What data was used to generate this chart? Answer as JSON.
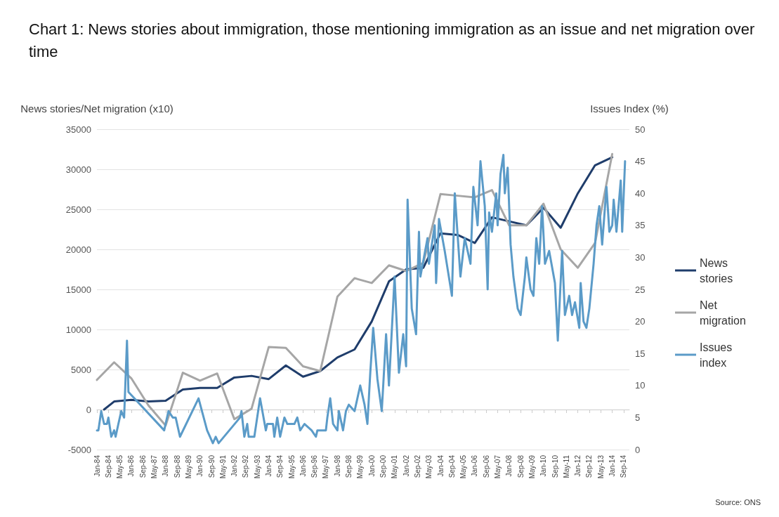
{
  "chart_data": {
    "type": "line",
    "title": "Chart 1: News stories about immigration, those mentioning immigration as an issue and net migration over time",
    "ylabel": "News stories/Net migration (x10)",
    "y2label": "Issues Index (%)",
    "annotations": [
      "Source: ONS"
    ],
    "xlim": [
      "1984-01",
      "2015-01"
    ],
    "xticks": [
      {
        "value": "1984-01",
        "label": "Jan-84"
      },
      {
        "value": "1984-09",
        "label": "Sep-84"
      },
      {
        "value": "1985-05",
        "label": "May-85"
      },
      {
        "value": "1986-01",
        "label": "Jan-86"
      },
      {
        "value": "1986-09",
        "label": "Sep-86"
      },
      {
        "value": "1987-05",
        "label": "May-87"
      },
      {
        "value": "1988-01",
        "label": "Jan-88"
      },
      {
        "value": "1988-09",
        "label": "Sep-88"
      },
      {
        "value": "1989-05",
        "label": "May-89"
      },
      {
        "value": "1990-01",
        "label": "Jan-90"
      },
      {
        "value": "1990-09",
        "label": "Sep-90"
      },
      {
        "value": "1991-05",
        "label": "May-91"
      },
      {
        "value": "1992-01",
        "label": "Jan-92"
      },
      {
        "value": "1992-09",
        "label": "Sep-92"
      },
      {
        "value": "1993-05",
        "label": "May-93"
      },
      {
        "value": "1994-01",
        "label": "Jan-94"
      },
      {
        "value": "1994-09",
        "label": "Sep-94"
      },
      {
        "value": "1995-05",
        "label": "May-95"
      },
      {
        "value": "1996-01",
        "label": "Jan-96"
      },
      {
        "value": "1996-09",
        "label": "Sep-96"
      },
      {
        "value": "1997-05",
        "label": "May-97"
      },
      {
        "value": "1998-01",
        "label": "Jan-98"
      },
      {
        "value": "1998-09",
        "label": "Sep-98"
      },
      {
        "value": "1999-05",
        "label": "May-99"
      },
      {
        "value": "2000-01",
        "label": "Jan-00"
      },
      {
        "value": "2000-09",
        "label": "Sep-00"
      },
      {
        "value": "2001-05",
        "label": "May-01"
      },
      {
        "value": "2002-01",
        "label": "Jan-02"
      },
      {
        "value": "2002-09",
        "label": "Sep-02"
      },
      {
        "value": "2003-05",
        "label": "May-03"
      },
      {
        "value": "2004-01",
        "label": "Jan-04"
      },
      {
        "value": "2004-09",
        "label": "Sep-04"
      },
      {
        "value": "2005-05",
        "label": "May-05"
      },
      {
        "value": "2006-01",
        "label": "Jan-06"
      },
      {
        "value": "2006-09",
        "label": "Sep-06"
      },
      {
        "value": "2007-05",
        "label": "May-07"
      },
      {
        "value": "2008-01",
        "label": "Jan-08"
      },
      {
        "value": "2008-09",
        "label": "Sep-08"
      },
      {
        "value": "2009-05",
        "label": "May-09"
      },
      {
        "value": "2010-01",
        "label": "Jan-10"
      },
      {
        "value": "2010-09",
        "label": "Sep-10"
      },
      {
        "value": "2011-05",
        "label": "May-11"
      },
      {
        "value": "2012-01",
        "label": "Jan-12"
      },
      {
        "value": "2012-09",
        "label": "Sep-12"
      },
      {
        "value": "2013-05",
        "label": "May-13"
      },
      {
        "value": "2014-01",
        "label": "Jan-14"
      },
      {
        "value": "2014-09",
        "label": "Sep-14"
      }
    ],
    "ylim": [
      -5000,
      35000
    ],
    "yticks": [
      -5000,
      0,
      5000,
      10000,
      15000,
      20000,
      25000,
      30000,
      35000
    ],
    "y2lim": [
      0,
      50
    ],
    "y2ticks": [
      0,
      5,
      10,
      15,
      20,
      25,
      30,
      35,
      40,
      45,
      50
    ],
    "grid": "y",
    "legend": "right",
    "marker": "none",
    "line_style": "solid",
    "series": [
      {
        "name": "News stories",
        "color": "#1f3d6b",
        "x": [
          "1984-06",
          "1985-01",
          "1986-01",
          "1987-01",
          "1988-01",
          "1989-01",
          "1990-01",
          "1991-01",
          "1992-01",
          "1993-01",
          "1994-01",
          "1995-01",
          "1996-01",
          "1997-01",
          "1998-01",
          "1999-01",
          "2000-01",
          "2001-01",
          "2002-01",
          "2003-01",
          "2004-01",
          "2005-01",
          "2006-01",
          "2007-01",
          "2008-01",
          "2009-01",
          "2010-01",
          "2011-01",
          "2012-01",
          "2013-01",
          "2014-01"
        ],
        "values": [
          0,
          1000,
          1200,
          1000,
          1100,
          2500,
          2700,
          2700,
          4000,
          4200,
          3800,
          5500,
          4100,
          4800,
          6500,
          7500,
          11000,
          16000,
          17500,
          17700,
          22000,
          21800,
          20800,
          24000,
          23500,
          23000,
          25200,
          22700,
          27000,
          30500,
          31500
        ]
      },
      {
        "name": "Net migration",
        "color": "#a6a6a6",
        "x": [
          "1984-01",
          "1985-01",
          "1986-01",
          "1987-01",
          "1988-01",
          "1989-01",
          "1990-01",
          "1991-01",
          "1992-01",
          "1993-01",
          "1994-01",
          "1995-01",
          "1996-01",
          "1997-01",
          "1998-01",
          "1999-01",
          "2000-01",
          "2001-01",
          "2002-01",
          "2003-01",
          "2004-01",
          "2005-01",
          "2006-01",
          "2007-01",
          "2008-01",
          "2009-01",
          "2010-01",
          "2011-01",
          "2012-01",
          "2013-01",
          "2014-01"
        ],
        "values": [
          3700,
          5900,
          3900,
          500,
          -2000,
          4600,
          3600,
          4500,
          -1200,
          100,
          7800,
          7700,
          5400,
          4800,
          14100,
          16400,
          15800,
          18000,
          17300,
          18300,
          26900,
          26700,
          26500,
          27400,
          23000,
          23000,
          25700,
          20000,
          17700,
          20800,
          31900
        ]
      },
      {
        "name": "Issues index",
        "color": "#5b9bc8",
        "axis": "y2",
        "x": [
          "1984-01",
          "1984-02",
          "1984-04",
          "1984-06",
          "1984-08",
          "1984-09",
          "1984-11",
          "1985-01",
          "1985-02",
          "1985-04",
          "1985-06",
          "1985-08",
          "1985-10",
          "1985-11",
          "1987-12",
          "1988-03",
          "1988-06",
          "1988-08",
          "1988-11",
          "1989-12",
          "1990-06",
          "1990-10",
          "1990-12",
          "1991-02",
          "1992-05",
          "1992-06",
          "1992-08",
          "1992-10",
          "1992-11",
          "1993-03",
          "1993-07",
          "1993-11",
          "1993-12",
          "1994-04",
          "1994-05",
          "1994-07",
          "1994-09",
          "1994-12",
          "1995-02",
          "1995-07",
          "1995-09",
          "1995-11",
          "1996-02",
          "1996-07",
          "1996-10",
          "1996-11",
          "1997-05",
          "1997-06",
          "1997-08",
          "1997-10",
          "1998-01",
          "1998-02",
          "1998-05",
          "1998-07",
          "1998-09",
          "1999-01",
          "1999-05",
          "1999-08",
          "1999-10",
          "1999-12",
          "2000-02",
          "2000-05",
          "2000-08",
          "2000-09",
          "2000-11",
          "2001-01",
          "2001-05",
          "2001-08",
          "2001-11",
          "2002-01",
          "2002-02",
          "2002-05",
          "2002-08",
          "2002-10",
          "2002-11",
          "2003-04",
          "2003-05",
          "2003-09",
          "2003-10",
          "2003-12",
          "2004-04",
          "2004-09",
          "2004-11",
          "2005-03",
          "2005-06",
          "2005-10",
          "2005-12",
          "2006-03",
          "2006-05",
          "2006-08",
          "2006-10",
          "2006-11",
          "2007-01",
          "2007-04",
          "2007-05",
          "2007-07",
          "2007-09",
          "2007-10",
          "2007-12",
          "2008-02",
          "2008-04",
          "2008-07",
          "2008-09",
          "2008-12",
          "2009-01",
          "2009-04",
          "2009-06",
          "2009-08",
          "2009-10",
          "2009-12",
          "2010-02",
          "2010-05",
          "2010-09",
          "2010-11",
          "2011-02",
          "2011-04",
          "2011-07",
          "2011-09",
          "2011-11",
          "2012-02",
          "2012-03",
          "2012-05",
          "2012-07",
          "2012-09",
          "2012-12",
          "2013-02",
          "2013-04",
          "2013-06",
          "2013-09",
          "2013-11",
          "2014-01",
          "2014-02",
          "2014-04",
          "2014-07",
          "2014-08",
          "2014-10"
        ],
        "values": [
          3,
          3,
          6,
          4,
          4,
          5,
          2,
          3,
          2,
          4,
          6,
          5,
          17,
          9,
          3,
          6,
          5,
          5,
          2,
          8,
          3,
          1,
          2,
          1,
          5,
          6,
          2,
          4,
          2,
          2,
          8,
          3,
          4,
          4,
          2,
          5,
          2,
          5,
          4,
          4,
          5,
          3,
          4,
          3,
          2,
          3,
          3,
          5,
          8,
          4,
          3,
          6,
          3,
          6,
          7,
          6,
          10,
          7,
          4,
          12,
          19,
          11,
          6,
          10,
          18,
          10,
          27,
          12,
          18,
          13,
          39,
          22,
          18,
          34,
          27,
          33,
          29,
          35,
          26,
          36,
          31,
          24,
          40,
          27,
          33,
          29,
          41,
          35,
          45,
          38,
          25,
          37,
          34,
          40,
          35,
          43,
          46,
          40,
          44,
          32,
          27,
          22,
          21,
          27,
          30,
          25,
          24,
          33,
          29,
          38,
          29,
          31,
          26,
          17,
          31,
          21,
          24,
          21,
          23,
          19,
          26,
          20,
          19,
          22,
          29,
          35,
          38,
          32,
          41,
          34,
          35,
          39,
          34,
          42,
          34,
          45
        ]
      }
    ]
  }
}
